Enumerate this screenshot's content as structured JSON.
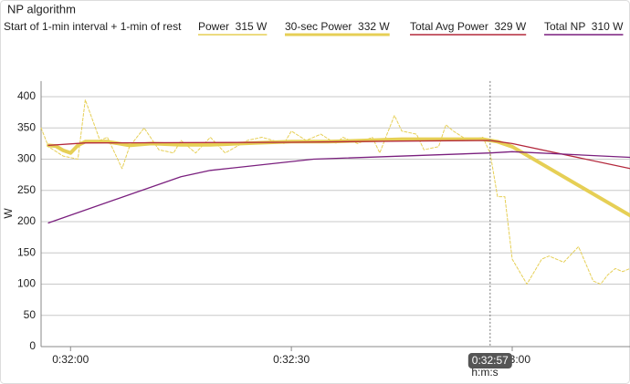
{
  "chart_data": {
    "type": "line",
    "title": "NP algorithm",
    "subtitle": "Start of 1-min interval + 1-min of rest",
    "xlabel": "h:m:s",
    "ylabel": "W",
    "xlim": [
      1916,
      1996
    ],
    "ylim": [
      0,
      425
    ],
    "xticks": [
      {
        "value": 1920,
        "label": "0:32:00"
      },
      {
        "value": 1950,
        "label": "0:32:30"
      },
      {
        "value": 1980,
        "label": "0:33:00"
      }
    ],
    "yticks": [
      0,
      50,
      100,
      150,
      200,
      250,
      300,
      350,
      400
    ],
    "grid": true,
    "cursor": {
      "value": 1977,
      "label": "0:32:57"
    },
    "series": [
      {
        "name": "Power  315 W",
        "color": "#e6cf55",
        "style": "dashed",
        "x": [
          1916,
          1917,
          1919,
          1921,
          1922,
          1924,
          1925,
          1927,
          1928,
          1930,
          1932,
          1934,
          1935,
          1937,
          1939,
          1941,
          1944,
          1946,
          1949,
          1950,
          1952,
          1954,
          1956,
          1957,
          1959,
          1961,
          1962,
          1963,
          1964,
          1965,
          1967,
          1968,
          1970,
          1971,
          1972,
          1974,
          1976,
          1977,
          1978,
          1979,
          1980,
          1982,
          1984,
          1985,
          1987,
          1989,
          1991,
          1992,
          1993,
          1994,
          1995,
          1996
        ],
        "values": [
          350,
          320,
          305,
          300,
          395,
          330,
          335,
          285,
          320,
          350,
          315,
          310,
          330,
          310,
          335,
          310,
          330,
          335,
          325,
          345,
          330,
          340,
          325,
          335,
          325,
          335,
          310,
          340,
          370,
          345,
          340,
          315,
          320,
          355,
          345,
          330,
          335,
          310,
          240,
          240,
          140,
          100,
          140,
          145,
          135,
          160,
          105,
          100,
          115,
          125,
          120,
          125
        ]
      },
      {
        "name": "30-sec Power  332 W",
        "color": "#e6cf55",
        "style": "thick",
        "x": [
          1917,
          1918,
          1919,
          1920,
          1921,
          1922,
          1925,
          1928,
          1931,
          1935,
          1939,
          1945,
          1950,
          1955,
          1960,
          1965,
          1970,
          1976,
          1978,
          1980,
          1996
        ],
        "values": [
          322,
          321,
          314,
          310,
          322,
          328,
          328,
          322,
          325,
          323,
          323,
          326,
          328,
          328,
          330,
          332,
          332,
          332,
          328,
          320,
          210
        ]
      },
      {
        "name": "Total Avg Power  329 W",
        "color": "#b3283c",
        "style": "solid",
        "x": [
          1917,
          1922,
          1950,
          1965,
          1977,
          1980,
          1996
        ],
        "values": [
          322,
          326,
          327,
          329,
          330,
          325,
          285
        ]
      },
      {
        "name": "Total NP  310 W",
        "color": "#7a1f7e",
        "style": "solid",
        "x": [
          1917,
          1935,
          1939,
          1953,
          1977,
          1980,
          1996
        ],
        "values": [
          198,
          272,
          282,
          300,
          310,
          312,
          303
        ]
      }
    ]
  }
}
